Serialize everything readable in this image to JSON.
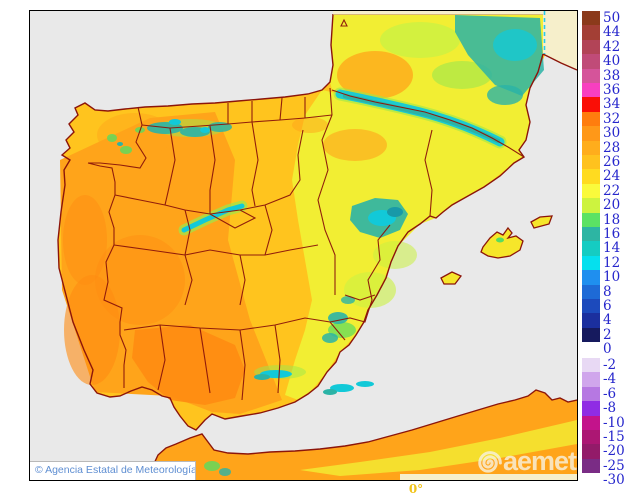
{
  "attribution": {
    "text": "© Agencia Estatal de Meteorología",
    "text_color": "#5E8ED2"
  },
  "watermark": {
    "text": "aemet"
  },
  "frame": {
    "meridian_label": "0°",
    "meridian_color": "#F2C41A"
  },
  "legend": {
    "label_color": "#2626CC",
    "upper_boundaries": [
      "50",
      "44",
      "42",
      "40",
      "38",
      "36",
      "34",
      "32",
      "30",
      "28",
      "26",
      "24",
      "22",
      "20",
      "18",
      "16",
      "14",
      "12",
      "10",
      "8",
      "6",
      "4",
      "2",
      "0"
    ],
    "upper_colors": [
      "#8B3A1B",
      "#A33F35",
      "#B24457",
      "#C04B78",
      "#D5549A",
      "#F83FC0",
      "#FA0E06",
      "#FF7D0E",
      "#FF9818",
      "#FFAD1C",
      "#FFC21E",
      "#FFDB20",
      "#FAFA3C",
      "#CDF33F",
      "#5BE264",
      "#2DB5A3",
      "#15CCC2",
      "#05E0EE",
      "#1F8FEF",
      "#1E6AD6",
      "#1C4ABC",
      "#1B2F9E",
      "#161A5E"
    ],
    "lower_boundaries": [
      "-2",
      "-4",
      "-6",
      "-8",
      "-10",
      "-15",
      "-20",
      "-25",
      "-30"
    ],
    "lower_colors": [
      "#E8D9F4",
      "#D0A6EC",
      "#B678E2",
      "#8F2CE4",
      "#C3138B",
      "#AC1773",
      "#931B69",
      "#7A2C85"
    ]
  },
  "map": {
    "colors": {
      "sea": "#E9E9E9",
      "border": "#8C150A",
      "land_base": "#FFC41E",
      "orange": "#FFA41A",
      "orange_deep": "#FF8C12",
      "yellow": "#F2EE33",
      "yellow_green": "#CBF142",
      "green": "#58DC60",
      "green_soft": "#9BE84C",
      "teal": "#2BB3A6",
      "teal_dark": "#1899A8",
      "cyan": "#12C9D8",
      "outside_domain": "#F6EFCB",
      "domain_edge": "#27CBE8",
      "island": "#F6E62A"
    }
  }
}
